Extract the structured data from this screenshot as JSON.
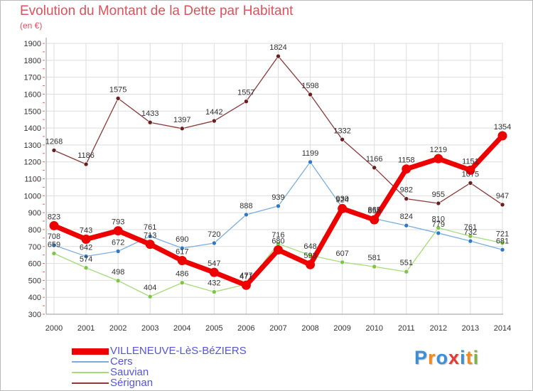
{
  "title": "Evolution du Montant de la Dette par Habitant",
  "subtitle": "(en €)",
  "brand": {
    "text": "Proxiti",
    "letter_colors": [
      "#3a8fd6",
      "#f08a1c",
      "#3a8fd6",
      "#e53935",
      "#3a8fd6",
      "#f08a1c",
      "#7cb342"
    ]
  },
  "chart_data": {
    "type": "line",
    "x": [
      "2000",
      "2001",
      "2002",
      "2003",
      "2004",
      "2005",
      "2006",
      "2007",
      "2008",
      "2009",
      "2010",
      "2011",
      "2012",
      "2013",
      "2014"
    ],
    "yticks": [
      300,
      400,
      500,
      600,
      700,
      800,
      900,
      1000,
      1100,
      1200,
      1300,
      1400,
      1500,
      1600,
      1700,
      1800,
      1900
    ],
    "ylim": [
      300,
      1900
    ],
    "grid": true,
    "legend": "bottom-left",
    "series": [
      {
        "name": "VILLENEUVE-LèS-BéZIERS",
        "color": "#ee0000",
        "marker": "#ee0000",
        "values": [
          823,
          743,
          793,
          713,
          617,
          547,
          471,
          680,
          593,
          924,
          858,
          1158,
          1219,
          1151,
          1354
        ],
        "labels": [
          "823",
          "743",
          "793",
          "713",
          "617",
          "547",
          "471",
          "680",
          "593",
          "924",
          "858",
          "1158",
          "1219",
          "1151",
          "1354"
        ],
        "thick": true
      },
      {
        "name": "Cers",
        "color": "#7aaee0",
        "marker": "#2f79c4",
        "values": [
          708,
          642,
          672,
          761,
          690,
          720,
          888,
          939,
          1199,
          930,
          865,
          824,
          779,
          732,
          681
        ],
        "labels": [
          "708",
          "642",
          "672",
          "761",
          "690",
          "720",
          "888",
          "939",
          "1199",
          "930",
          "865",
          "824",
          "779",
          "732",
          "681"
        ],
        "thick": false
      },
      {
        "name": "Sauvian",
        "color": "#a5dc78",
        "marker": "#7cc545",
        "values": [
          659,
          574,
          498,
          404,
          486,
          432,
          477,
          716,
          648,
          607,
          581,
          551,
          810,
          761,
          721
        ],
        "labels": [
          "659",
          "574",
          "498",
          "404",
          "486",
          "432",
          "477",
          "716",
          "648",
          "607",
          "581",
          "551",
          "810",
          "761",
          "721"
        ],
        "thick": false
      },
      {
        "name": "Sérignan",
        "color": "#8b3a3a",
        "marker": "#6a1f1f",
        "values": [
          1268,
          1186,
          1575,
          1433,
          1397,
          1442,
          1557,
          1824,
          1598,
          1332,
          1166,
          982,
          955,
          1075,
          947
        ],
        "labels": [
          "1268",
          "1186",
          "1575",
          "1433",
          "1397",
          "1442",
          "1557",
          "1824",
          "1598",
          "1332",
          "1166",
          "982",
          "955",
          "1075",
          "947"
        ],
        "thick": false
      }
    ]
  }
}
